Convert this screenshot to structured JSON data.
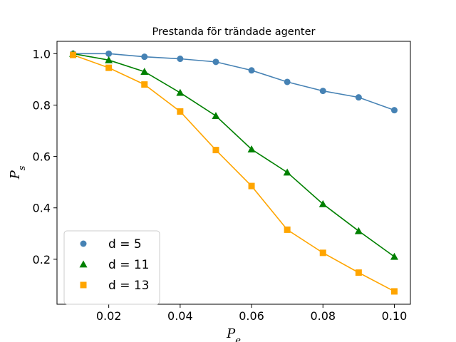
{
  "chart_data": {
    "type": "line",
    "title": "Prestanda för trändade agenter",
    "xlabel": {
      "base": "P",
      "sub": "e"
    },
    "ylabel": {
      "base": "P",
      "sub": "s"
    },
    "x": [
      0.01,
      0.02,
      0.03,
      0.04,
      0.05,
      0.06,
      0.07,
      0.08,
      0.09,
      0.1
    ],
    "xlim": [
      0.0055,
      0.1045
    ],
    "ylim": [
      0.025,
      1.048
    ],
    "xticks": [
      "0.02",
      "0.04",
      "0.06",
      "0.08",
      "0.10"
    ],
    "yticks": [
      "0.2",
      "0.4",
      "0.6",
      "0.8",
      "1.0"
    ],
    "grid": false,
    "legend_position": "lower-left",
    "series": [
      {
        "name": "d = 5",
        "color": "#4682b4",
        "marker": "circle",
        "values": [
          1.0,
          1.0,
          0.988,
          0.98,
          0.968,
          0.935,
          0.89,
          0.855,
          0.83,
          0.78
        ]
      },
      {
        "name": "d = 11",
        "color": "#008000",
        "marker": "triangle",
        "values": [
          1.0,
          0.975,
          0.93,
          0.848,
          0.758,
          0.628,
          0.538,
          0.415,
          0.31,
          0.21
        ]
      },
      {
        "name": "d = 13",
        "color": "#ffa500",
        "marker": "square",
        "values": [
          0.995,
          0.945,
          0.88,
          0.775,
          0.625,
          0.485,
          0.315,
          0.225,
          0.148,
          0.075
        ]
      }
    ]
  }
}
